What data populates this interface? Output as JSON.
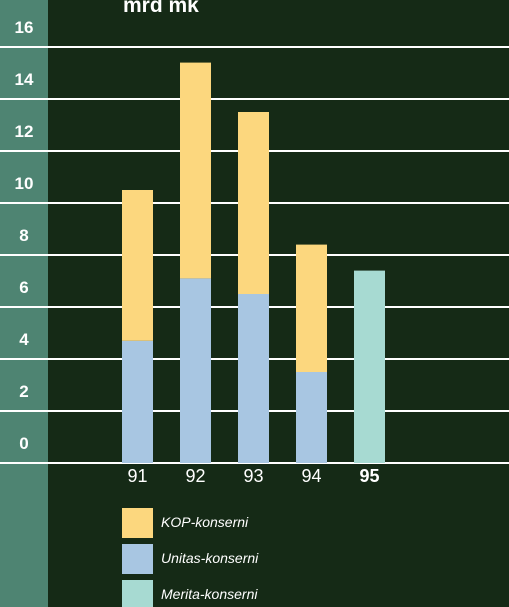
{
  "chart_data": {
    "type": "bar",
    "stacked": true,
    "title": "mrd mk",
    "categories": [
      "91",
      "92",
      "93",
      "94",
      "95"
    ],
    "highlight_category": "95",
    "series": [
      {
        "name": "Unitas-konserni",
        "color": "#a8c6e2",
        "values": [
          4.7,
          7.1,
          6.5,
          3.5,
          0
        ]
      },
      {
        "name": "KOP-konserni",
        "color": "#fcd77e",
        "values": [
          5.8,
          8.3,
          7.0,
          4.9,
          0
        ]
      },
      {
        "name": "Merita-konserni",
        "color": "#a7dad2",
        "values": [
          0,
          0,
          0,
          0,
          7.4
        ]
      }
    ],
    "legend_order": [
      "KOP-konserni",
      "Unitas-konserni",
      "Merita-konserni"
    ],
    "yticks": [
      0,
      2,
      4,
      6,
      8,
      10,
      12,
      14,
      16
    ],
    "ylim": [
      0,
      16
    ],
    "grid": true,
    "legend_position": "bottom"
  },
  "colors": {
    "background": "#152a16",
    "axis_band": "#4e8472",
    "gridline": "#ffffff"
  }
}
